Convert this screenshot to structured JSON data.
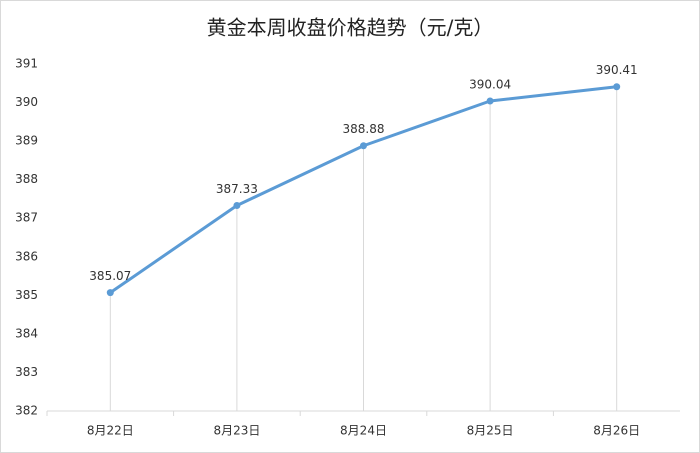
{
  "chart_data": {
    "type": "line",
    "title": "黄金本周收盘价格趋势（元/克）",
    "categories": [
      "8月22日",
      "8月23日",
      "8月24日",
      "8月25日",
      "8月26日"
    ],
    "values": [
      385.07,
      387.33,
      388.88,
      390.04,
      390.41
    ],
    "color": "#5b9bd5",
    "ylim": [
      382,
      391
    ],
    "yticks": [
      382,
      383,
      384,
      385,
      386,
      387,
      388,
      389,
      390,
      391
    ],
    "data_labels": true,
    "drop_lines": true
  }
}
